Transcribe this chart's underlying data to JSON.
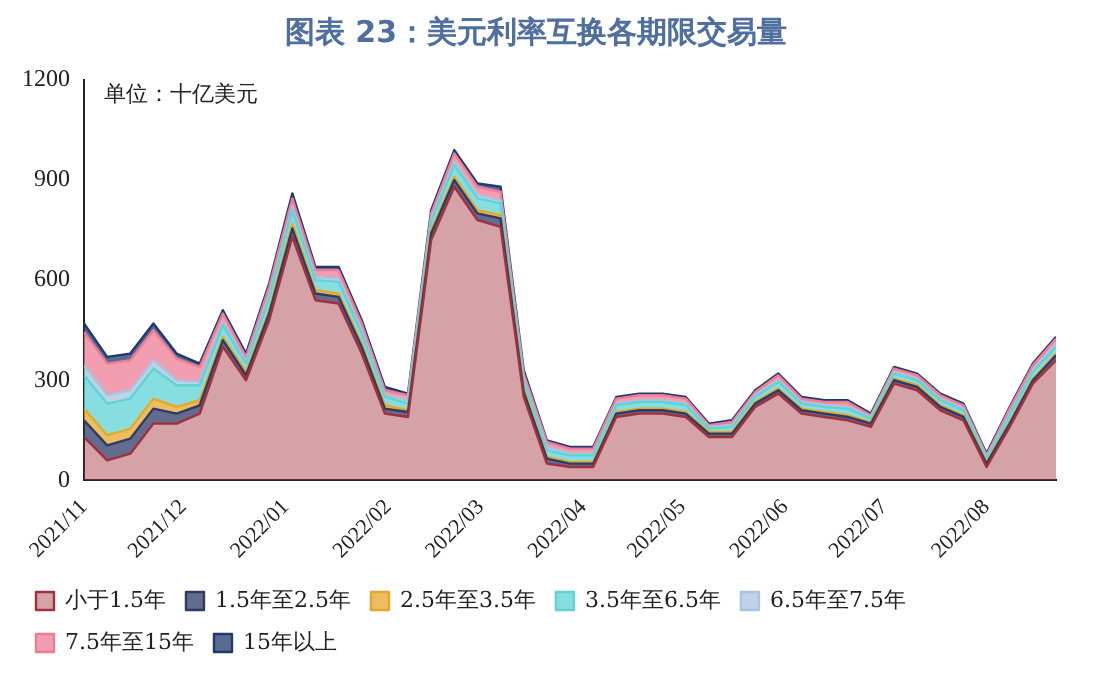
{
  "chart_data": {
    "type": "area",
    "stacked": true,
    "title": "图表 23：美元利率互换各期限交易量",
    "annotations": [
      "单位：十亿美元"
    ],
    "x": [
      "2021-11-01",
      "2021-11-08",
      "2021-11-15",
      "2021-11-22",
      "2021-11-29",
      "2021-12-06",
      "2021-12-13",
      "2021-12-20",
      "2021-12-27",
      "2022-01-03",
      "2022-01-10",
      "2022-01-17",
      "2022-01-24",
      "2022-01-31",
      "2022-02-07",
      "2022-02-14",
      "2022-02-21",
      "2022-02-28",
      "2022-03-07",
      "2022-03-14",
      "2022-03-21",
      "2022-03-28",
      "2022-04-04",
      "2022-04-11",
      "2022-04-18",
      "2022-04-25",
      "2022-05-02",
      "2022-05-09",
      "2022-05-16",
      "2022-05-23",
      "2022-05-30",
      "2022-06-06",
      "2022-06-13",
      "2022-06-20",
      "2022-06-27",
      "2022-07-04",
      "2022-07-11",
      "2022-07-18",
      "2022-07-25",
      "2022-08-01",
      "2022-08-08",
      "2022-08-15",
      "2022-08-22"
    ],
    "xlim": [
      "2021-11-01",
      "2022-08-22"
    ],
    "xticks": [
      {
        "value": "2021-11-01",
        "label": "2021/11"
      },
      {
        "value": "2021-12-01",
        "label": "2021/12"
      },
      {
        "value": "2022-01-01",
        "label": "2022/01"
      },
      {
        "value": "2022-02-01",
        "label": "2022/02"
      },
      {
        "value": "2022-03-01",
        "label": "2022/03"
      },
      {
        "value": "2022-04-01",
        "label": "2022/04"
      },
      {
        "value": "2022-05-01",
        "label": "2022/05"
      },
      {
        "value": "2022-06-01",
        "label": "2022/06"
      },
      {
        "value": "2022-07-01",
        "label": "2022/07"
      },
      {
        "value": "2022-08-01",
        "label": "2022/08"
      }
    ],
    "ylim": [
      0,
      1200
    ],
    "yticks": [
      0,
      300,
      600,
      900,
      1200
    ],
    "grid": false,
    "legend": "bottom",
    "series": [
      {
        "name": "小于1.5年",
        "color": "#a0303c",
        "values": [
          130,
          60,
          80,
          170,
          170,
          200,
          400,
          300,
          480,
          730,
          540,
          530,
          380,
          200,
          190,
          720,
          880,
          780,
          760,
          250,
          50,
          40,
          40,
          190,
          200,
          200,
          190,
          130,
          130,
          220,
          260,
          200,
          190,
          180,
          160,
          290,
          270,
          210,
          180,
          40,
          160,
          290,
          360
        ]
      },
      {
        "name": "1.5年至2.5年",
        "color": "#2f3b66",
        "values": [
          50,
          45,
          45,
          45,
          30,
          25,
          20,
          15,
          20,
          25,
          20,
          20,
          20,
          15,
          15,
          20,
          20,
          20,
          25,
          15,
          15,
          10,
          10,
          10,
          10,
          10,
          10,
          10,
          10,
          10,
          10,
          10,
          10,
          10,
          10,
          10,
          10,
          10,
          10,
          10,
          10,
          10,
          15
        ]
      },
      {
        "name": "2.5年至3.5年",
        "color": "#e6a82a",
        "values": [
          35,
          30,
          30,
          30,
          20,
          15,
          10,
          10,
          10,
          15,
          10,
          10,
          10,
          10,
          5,
          10,
          10,
          10,
          10,
          10,
          5,
          5,
          5,
          5,
          5,
          5,
          5,
          5,
          5,
          5,
          5,
          5,
          5,
          5,
          5,
          5,
          5,
          5,
          5,
          5,
          5,
          5,
          5
        ]
      },
      {
        "name": "3.5年至6.5年",
        "color": "#5fd3d6",
        "values": [
          100,
          95,
          90,
          90,
          65,
          45,
          35,
          25,
          35,
          40,
          30,
          35,
          30,
          25,
          20,
          25,
          35,
          35,
          35,
          25,
          20,
          20,
          20,
          20,
          20,
          20,
          20,
          10,
          15,
          15,
          20,
          15,
          15,
          20,
          10,
          15,
          15,
          15,
          15,
          10,
          20,
          20,
          20
        ]
      },
      {
        "name": "6.5年至7.5年",
        "color": "#a9c4e0",
        "values": [
          30,
          25,
          25,
          25,
          15,
          10,
          10,
          5,
          10,
          10,
          10,
          10,
          10,
          5,
          10,
          10,
          10,
          10,
          10,
          5,
          10,
          5,
          5,
          5,
          5,
          5,
          5,
          5,
          5,
          5,
          5,
          5,
          5,
          5,
          5,
          5,
          5,
          5,
          5,
          5,
          5,
          5,
          10
        ]
      },
      {
        "name": "7.5年至15年",
        "color": "#ef7c95",
        "values": [
          100,
          95,
          90,
          90,
          65,
          45,
          25,
          15,
          25,
          25,
          20,
          25,
          20,
          15,
          15,
          15,
          25,
          25,
          25,
          15,
          15,
          15,
          15,
          15,
          15,
          15,
          15,
          5,
          10,
          10,
          15,
          10,
          10,
          15,
          5,
          10,
          10,
          10,
          10,
          5,
          15,
          15,
          15
        ]
      },
      {
        "name": "15年以上",
        "color": "#1f3a6e",
        "values": [
          25,
          20,
          20,
          20,
          15,
          10,
          10,
          10,
          10,
          15,
          10,
          10,
          10,
          10,
          5,
          10,
          10,
          10,
          15,
          10,
          5,
          5,
          5,
          5,
          5,
          5,
          5,
          5,
          5,
          5,
          5,
          5,
          5,
          5,
          5,
          5,
          5,
          5,
          5,
          5,
          5,
          5,
          5
        ]
      }
    ]
  }
}
